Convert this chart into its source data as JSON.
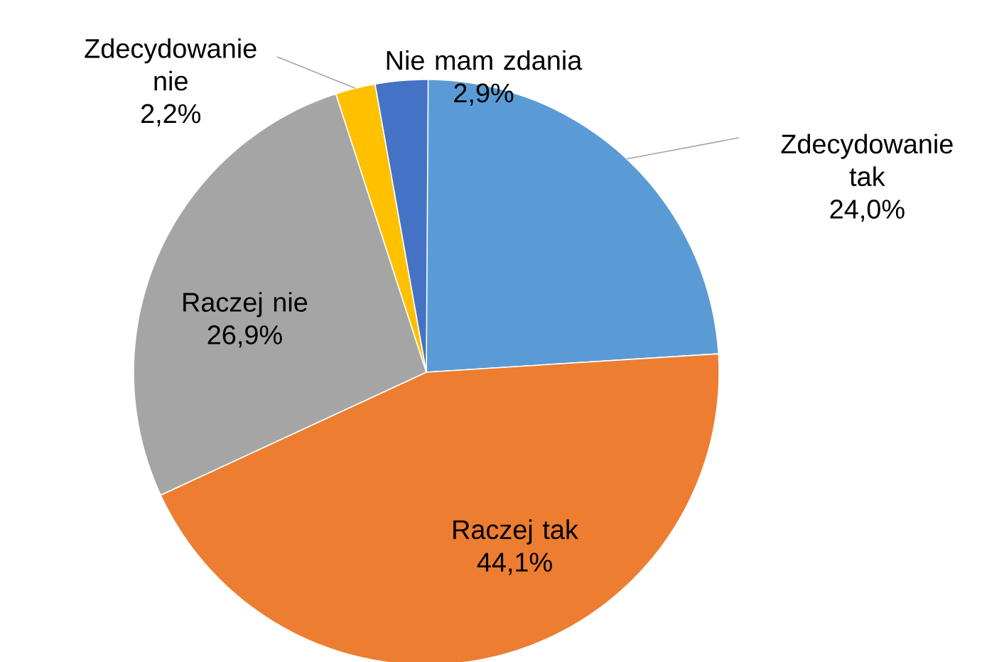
{
  "chart_data": {
    "type": "pie",
    "categories": [
      "Zdecydowanie tak",
      "Raczej tak",
      "Raczej nie",
      "Zdecydowanie nie",
      "Nie mam zdania"
    ],
    "values": [
      24.0,
      44.1,
      26.9,
      2.2,
      2.9
    ],
    "value_labels": [
      "24,0%",
      "44,1%",
      "26,9%",
      "2,2%",
      "2,9%"
    ],
    "colors": [
      "#5b9bd5",
      "#ed7d31",
      "#a5a5a5",
      "#ffc000",
      "#4472c4"
    ]
  }
}
